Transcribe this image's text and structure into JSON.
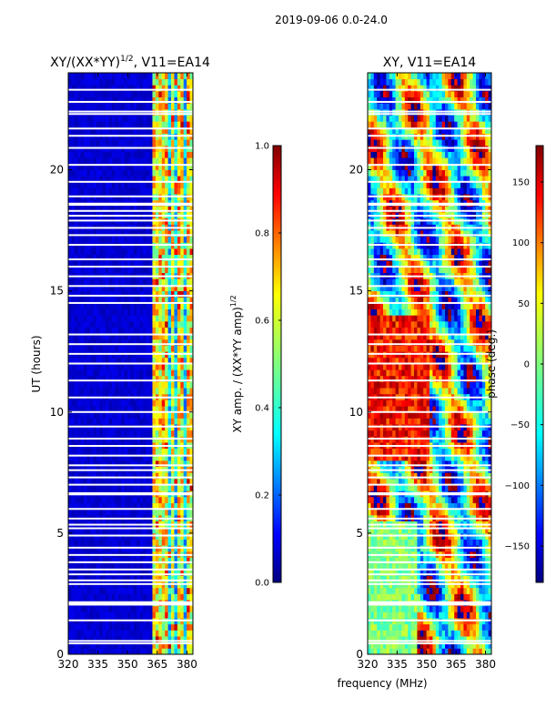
{
  "figure": {
    "suptitle": "2019-09-06 0.0-24.0",
    "common_xlabel": "frequency (MHz)"
  },
  "colors": {
    "jet": [
      "#00007f",
      "#0000ff",
      "#007fff",
      "#00ffff",
      "#7fff7f",
      "#ffff00",
      "#ff7f00",
      "#ff0000",
      "#7f0000"
    ],
    "flag": "#ffffff",
    "frame": "#000000"
  },
  "chart_data": [
    {
      "type": "heatmap",
      "panel": "amplitude",
      "title": "XY/(XX*YY)",
      "title_sup": "1/2",
      "title_suffix": ", V11=EA14",
      "xlabel": "",
      "ylabel": "UT (hours)",
      "xlim": [
        320,
        383
      ],
      "ylim": [
        0,
        24
      ],
      "xticks": [
        320,
        335,
        350,
        365,
        380
      ],
      "yticks": [
        0,
        5,
        10,
        15,
        20
      ],
      "grid": false,
      "flagged_hours": [
        0.45,
        0.55,
        1.4,
        2.05,
        2.1,
        2.15,
        2.9,
        3.05,
        3.3,
        3.5,
        3.8,
        4.1,
        4.4,
        4.9,
        5.2,
        5.35,
        5.6,
        6.0,
        6.6,
        6.65,
        7.0,
        7.3,
        7.6,
        7.8,
        8.2,
        8.6,
        8.9,
        9.4,
        10.0,
        10.6,
        11.3,
        12.0,
        12.4,
        12.8,
        13.2,
        14.5,
        14.8,
        15.2,
        15.6,
        16.0,
        16.3,
        16.9,
        17.3,
        17.6,
        17.9,
        18.1,
        18.3,
        18.55,
        18.6,
        18.9,
        19.5,
        20.2,
        20.9,
        21.4,
        21.7,
        22.3,
        22.4,
        22.8,
        23.3
      ],
      "rfi_bands_mhz": [
        [
          363.5,
          366.5
        ],
        [
          368,
          369.5
        ],
        [
          372,
          373.5
        ],
        [
          376,
          377.5
        ],
        [
          380,
          381.5
        ]
      ],
      "colorbar": {
        "label": "XY amp. / (XX*YY amp)",
        "label_sup": "1/2",
        "vmin": 0.0,
        "vmax": 1.0,
        "ticks": [
          "0.0",
          "0.2",
          "0.4",
          "0.6",
          "0.8",
          "1.0"
        ]
      }
    },
    {
      "type": "heatmap",
      "panel": "phase",
      "title": "XY, V11=EA14",
      "xlabel": "frequency (MHz)",
      "ylabel": "",
      "xlim": [
        320,
        383
      ],
      "ylim": [
        0,
        24
      ],
      "xticks": [
        320,
        335,
        350,
        365,
        380
      ],
      "yticks": [
        0,
        5,
        10,
        15,
        20
      ],
      "grid": false,
      "flagged_hours": [
        0.45,
        0.55,
        1.4,
        2.05,
        2.1,
        2.15,
        2.9,
        3.05,
        3.3,
        3.5,
        3.8,
        4.1,
        4.4,
        4.9,
        5.2,
        5.35,
        5.6,
        6.0,
        6.6,
        6.65,
        7.0,
        7.3,
        7.6,
        7.8,
        8.2,
        8.6,
        8.9,
        9.4,
        10.0,
        10.6,
        11.3,
        12.0,
        12.4,
        12.8,
        13.2,
        14.5,
        14.8,
        15.2,
        15.6,
        16.0,
        16.3,
        16.9,
        17.3,
        17.6,
        17.9,
        18.1,
        18.3,
        18.55,
        18.6,
        18.9,
        19.5,
        20.2,
        20.9,
        21.4,
        21.7,
        22.3,
        22.4,
        22.8,
        23.3
      ],
      "colorbar": {
        "label": "phase (deg.)",
        "vmin": -180,
        "vmax": 180,
        "ticks": [
          "−150",
          "−100",
          "−50",
          "0",
          "50",
          "100",
          "150"
        ]
      }
    }
  ]
}
